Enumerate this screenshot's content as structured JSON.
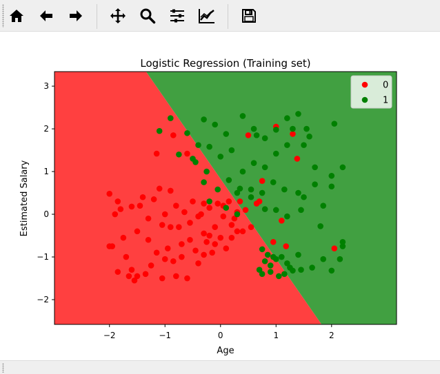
{
  "toolbar": {
    "buttons": [
      {
        "name": "home-icon",
        "tooltip": "Home"
      },
      {
        "name": "back-arrow-icon",
        "tooltip": "Back"
      },
      {
        "name": "forward-arrow-icon",
        "tooltip": "Forward"
      },
      {
        "name": "pan-icon",
        "tooltip": "Pan"
      },
      {
        "name": "zoom-icon",
        "tooltip": "Zoom"
      },
      {
        "name": "subplots-icon",
        "tooltip": "Subplots"
      },
      {
        "name": "customize-icon",
        "tooltip": "Customize"
      },
      {
        "name": "save-icon",
        "tooltip": "Save"
      }
    ]
  },
  "chart_data": {
    "type": "scatter",
    "title": "Logistic Regression (Training set)",
    "xlabel": "Age",
    "ylabel": "Estimated Salary",
    "xlim": [
      -2.99,
      3.17
    ],
    "ylim": [
      -2.58,
      3.34
    ],
    "xticks": [
      -2,
      -1,
      0,
      1,
      2
    ],
    "yticks": [
      -2,
      -1,
      0,
      1,
      2,
      3
    ],
    "xtick_labels": [
      "−2",
      "−1",
      "0",
      "1",
      "2"
    ],
    "ytick_labels": [
      "−2",
      "−1",
      "0",
      "1",
      "2",
      "3"
    ],
    "legend_position": "top-right",
    "decision_boundary": [
      [
        -1.34,
        3.34
      ],
      [
        1.82,
        -2.58
      ]
    ],
    "region_colors": {
      "0": "#ff4040",
      "1": "#41a041"
    },
    "series": [
      {
        "name": "0",
        "color": "#ff0000",
        "points": [
          [
            -2.0,
            0.48
          ],
          [
            -1.95,
            -0.75
          ],
          [
            -1.9,
            0.0
          ],
          [
            -1.85,
            0.3
          ],
          [
            -1.8,
            0.12
          ],
          [
            -1.75,
            -0.55
          ],
          [
            -1.7,
            -1.0
          ],
          [
            -1.65,
            -1.45
          ],
          [
            -1.6,
            0.18
          ],
          [
            -1.55,
            -1.55
          ],
          [
            -1.5,
            -0.4
          ],
          [
            -1.45,
            0.2
          ],
          [
            -1.4,
            0.4
          ],
          [
            -1.35,
            -1.4
          ],
          [
            -1.3,
            -0.1
          ],
          [
            -1.25,
            -1.2
          ],
          [
            -1.2,
            0.35
          ],
          [
            -1.15,
            -0.9
          ],
          [
            -1.1,
            0.6
          ],
          [
            -1.05,
            -0.25
          ],
          [
            -1.0,
            0.0
          ],
          [
            -0.95,
            -0.8
          ],
          [
            -0.9,
            0.55
          ],
          [
            -0.85,
            -1.1
          ],
          [
            -0.8,
            0.2
          ],
          [
            -0.75,
            -0.3
          ],
          [
            -0.7,
            -0.7
          ],
          [
            -0.65,
            0.05
          ],
          [
            -0.6,
            -1.5
          ],
          [
            -0.55,
            -0.2
          ],
          [
            -0.5,
            0.3
          ],
          [
            -0.45,
            -0.85
          ],
          [
            -0.4,
            -1.15
          ],
          [
            -0.35,
            0.0
          ],
          [
            -0.3,
            -0.45
          ],
          [
            -0.25,
            -0.65
          ],
          [
            -0.2,
            0.15
          ],
          [
            -0.15,
            -0.9
          ],
          [
            -0.1,
            -0.3
          ],
          [
            -0.05,
            0.25
          ],
          [
            0.0,
            -0.55
          ],
          [
            0.05,
            -0.05
          ],
          [
            0.1,
            -0.8
          ],
          [
            0.15,
            0.3
          ],
          [
            0.2,
            -0.25
          ],
          [
            0.25,
            -0.1
          ],
          [
            0.3,
            0.05
          ],
          [
            0.35,
            0.3
          ],
          [
            0.4,
            -0.4
          ],
          [
            0.45,
            0.1
          ],
          [
            0.55,
            -0.3
          ],
          [
            0.65,
            0.25
          ],
          [
            -1.15,
            1.42
          ],
          [
            -0.85,
            1.85
          ],
          [
            -0.6,
            1.42
          ],
          [
            -1.85,
            -1.35
          ],
          [
            -2.0,
            -0.75
          ],
          [
            -1.6,
            -1.3
          ],
          [
            -1.3,
            -0.6
          ],
          [
            -1.05,
            -1.5
          ],
          [
            -0.8,
            -1.45
          ],
          [
            -0.3,
            -0.95
          ],
          [
            0.5,
            1.85
          ],
          [
            0.75,
            0.78
          ],
          [
            0.7,
            0.3
          ],
          [
            1.0,
            2.05
          ],
          [
            1.3,
            1.88
          ],
          [
            1.38,
            1.3
          ],
          [
            0.95,
            -0.65
          ],
          [
            1.1,
            -0.15
          ],
          [
            1.18,
            -0.75
          ],
          [
            2.05,
            -0.8
          ],
          [
            -1.5,
            -1.45
          ],
          [
            -1.0,
            -1.05
          ],
          [
            -0.9,
            -0.3
          ],
          [
            -0.7,
            -1.0
          ],
          [
            -0.55,
            -0.6
          ],
          [
            -0.4,
            -0.05
          ],
          [
            -0.3,
            0.25
          ],
          [
            -0.2,
            -0.5
          ],
          [
            -0.1,
            -0.7
          ],
          [
            0.05,
            0.2
          ],
          [
            0.2,
            -0.55
          ],
          [
            0.3,
            -0.4
          ]
        ]
      },
      {
        "name": "1",
        "color": "#008000",
        "points": [
          [
            -0.9,
            2.25
          ],
          [
            -0.6,
            1.9
          ],
          [
            -0.3,
            2.22
          ],
          [
            -0.1,
            2.1
          ],
          [
            0.1,
            1.88
          ],
          [
            0.4,
            2.3
          ],
          [
            0.6,
            2.0
          ],
          [
            0.8,
            1.78
          ],
          [
            1.0,
            1.98
          ],
          [
            1.2,
            2.25
          ],
          [
            1.4,
            2.35
          ],
          [
            1.6,
            1.82
          ],
          [
            2.05,
            2.12
          ],
          [
            -1.1,
            1.95
          ],
          [
            -0.75,
            1.4
          ],
          [
            -0.5,
            1.3
          ],
          [
            -0.2,
            1.58
          ],
          [
            0.0,
            1.35
          ],
          [
            0.2,
            1.5
          ],
          [
            0.4,
            1.0
          ],
          [
            0.6,
            1.2
          ],
          [
            0.8,
            1.1
          ],
          [
            1.0,
            1.42
          ],
          [
            1.2,
            1.62
          ],
          [
            1.5,
            1.62
          ],
          [
            1.7,
            1.1
          ],
          [
            2.0,
            0.9
          ],
          [
            2.2,
            1.1
          ],
          [
            -0.3,
            0.75
          ],
          [
            -0.05,
            0.58
          ],
          [
            0.15,
            0.8
          ],
          [
            0.3,
            0.5
          ],
          [
            0.55,
            0.58
          ],
          [
            0.75,
            0.5
          ],
          [
            0.95,
            0.75
          ],
          [
            1.15,
            0.58
          ],
          [
            1.4,
            0.5
          ],
          [
            1.7,
            0.7
          ],
          [
            2.0,
            0.65
          ],
          [
            -0.2,
            0.3
          ],
          [
            0.1,
            0.15
          ],
          [
            0.3,
            0.0
          ],
          [
            0.55,
            0.4
          ],
          [
            0.8,
            0.12
          ],
          [
            1.0,
            0.1
          ],
          [
            1.2,
            -0.05
          ],
          [
            1.45,
            0.1
          ],
          [
            1.85,
            0.2
          ],
          [
            2.2,
            -0.75
          ],
          [
            0.75,
            -0.82
          ],
          [
            0.95,
            -1.0
          ],
          [
            1.2,
            -1.15
          ],
          [
            1.45,
            -1.3
          ],
          [
            1.85,
            -1.05
          ],
          [
            2.15,
            -1.05
          ],
          [
            0.7,
            -1.3
          ],
          [
            0.9,
            -1.2
          ],
          [
            1.05,
            -1.45
          ],
          [
            1.3,
            -1.32
          ],
          [
            1.65,
            -1.25
          ],
          [
            2.0,
            -1.32
          ],
          [
            0.85,
            -0.95
          ],
          [
            1.1,
            -1.0
          ],
          [
            1.4,
            -0.95
          ],
          [
            2.2,
            -0.65
          ],
          [
            -0.45,
            1.22
          ],
          [
            -0.25,
            1.0
          ],
          [
            1.8,
            -0.28
          ],
          [
            1.5,
            0.4
          ],
          [
            1.3,
            2.0
          ],
          [
            -0.4,
            1.62
          ],
          [
            0.35,
            0.6
          ],
          [
            0.65,
            1.85
          ],
          [
            1.55,
            2.0
          ],
          [
            0.9,
            -1.35
          ],
          [
            1.0,
            -1.05
          ],
          [
            1.15,
            -1.4
          ],
          [
            0.8,
            -1.1
          ],
          [
            1.25,
            -1.25
          ],
          [
            0.75,
            -1.4
          ]
        ]
      }
    ]
  }
}
